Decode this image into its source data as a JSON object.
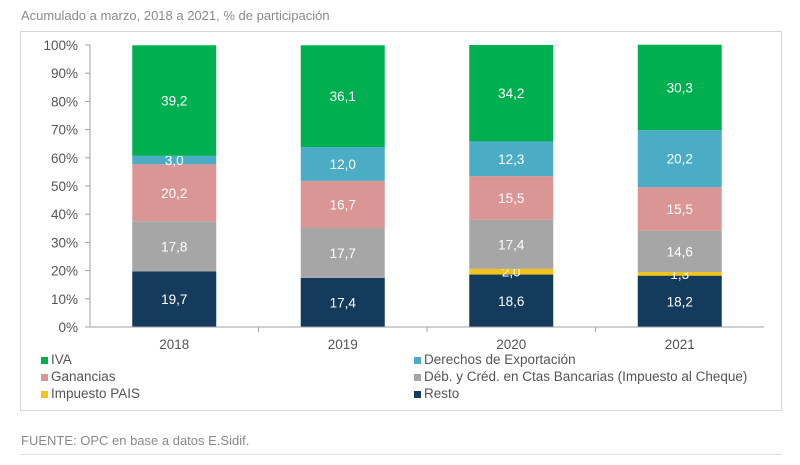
{
  "subtitle": "Acumulado a marzo, 2018 a 2021, % de participación",
  "source": "FUENTE: OPC en base a datos E.Sidif.",
  "chart_data": {
    "type": "bar",
    "stacked": true,
    "percent": true,
    "categories": [
      "2018",
      "2019",
      "2020",
      "2021"
    ],
    "ylim": [
      0,
      100
    ],
    "yticks": [
      "0%",
      "10%",
      "20%",
      "30%",
      "40%",
      "50%",
      "60%",
      "70%",
      "80%",
      "90%",
      "100%"
    ],
    "grid": false,
    "legend_position": "bottom",
    "series": [
      {
        "name": "Resto",
        "color": "#143a5c",
        "values": [
          19.7,
          17.4,
          18.6,
          18.2
        ],
        "labels": [
          "19,7",
          "17,4",
          "18,6",
          "18,2"
        ],
        "label_color": "#ffffff"
      },
      {
        "name": "Impuesto PAIS",
        "color": "#f2c318",
        "values": [
          0.0,
          0.0,
          2.0,
          1.3
        ],
        "labels": [
          "",
          "",
          "2,0",
          "1,3"
        ],
        "label_color": "#ffffff"
      },
      {
        "name": "Déb. y Créd. en Ctas Bancarias (Impuesto al Cheque)",
        "color": "#a6a6a6",
        "values": [
          17.8,
          17.7,
          17.4,
          14.6
        ],
        "labels": [
          "17,8",
          "17,7",
          "17,4",
          "14,6"
        ],
        "label_color": "#ffffff"
      },
      {
        "name": "Ganancias",
        "color": "#d99694",
        "values": [
          20.2,
          16.7,
          15.5,
          15.5
        ],
        "labels": [
          "20,2",
          "16,7",
          "15,5",
          "15,5"
        ],
        "label_color": "#ffffff"
      },
      {
        "name": "Derechos de Exportación",
        "color": "#4bacc6",
        "values": [
          3.0,
          12.0,
          12.3,
          20.2
        ],
        "labels": [
          "3,0",
          "12,0",
          "12,3",
          "20,2"
        ],
        "label_color": "#ffffff"
      },
      {
        "name": "IVA",
        "color": "#00b050",
        "values": [
          39.2,
          36.1,
          34.2,
          30.3
        ],
        "labels": [
          "39,2",
          "36,1",
          "34,2",
          "30,3"
        ],
        "label_color": "#ffffff"
      }
    ],
    "legend_order": [
      "IVA",
      "Derechos de Exportación",
      "Ganancias",
      "Déb. y Créd. en Ctas Bancarias (Impuesto al Cheque)",
      "Impuesto PAIS",
      "Resto"
    ]
  }
}
